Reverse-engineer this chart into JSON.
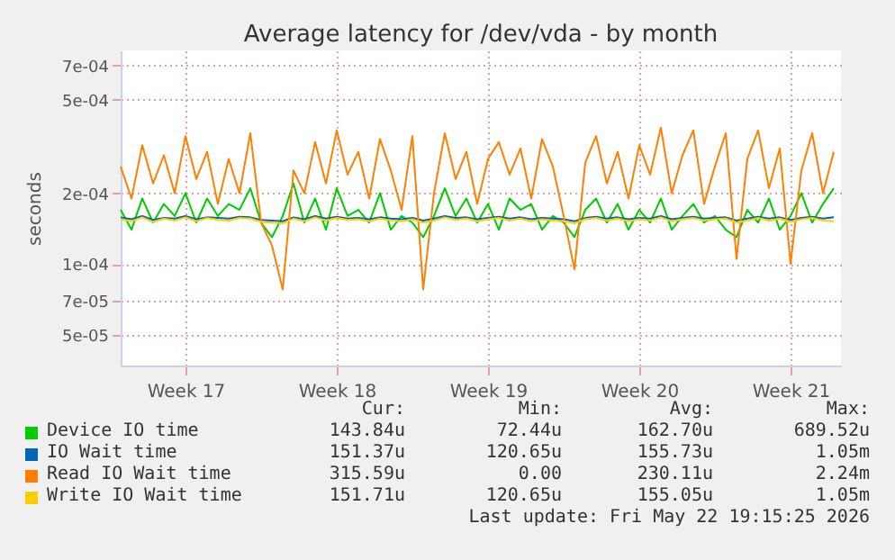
{
  "chart_data": {
    "type": "line",
    "title": "Average latency for /dev/vda - by month",
    "ylabel": "seconds",
    "log": "y",
    "grid": true,
    "legend": "bottom",
    "xlim": [
      "2026-04-20T12:00",
      "2026-05-23T20:00"
    ],
    "xticks": [
      {
        "value": "2026-04-23T12:00",
        "label": "Week 17"
      },
      {
        "value": "2026-04-30T12:00",
        "label": "Week 18"
      },
      {
        "value": "2026-05-07T12:00",
        "label": "Week 19"
      },
      {
        "value": "2026-05-14T12:00",
        "label": "Week 20"
      },
      {
        "value": "2026-05-21T12:00",
        "label": "Week 21"
      }
    ],
    "ylim": [
      3.7e-05,
      0.00081
    ],
    "yticks": [
      {
        "value": 5e-05,
        "label": "5e-05"
      },
      {
        "value": 7e-05,
        "label": "7e-05"
      },
      {
        "value": 0.0001,
        "label": "1e-04"
      },
      {
        "value": 0.0002,
        "label": "2e-04"
      },
      {
        "value": 0.0005,
        "label": "5e-04"
      },
      {
        "value": 0.0007,
        "label": "7e-04"
      }
    ],
    "x": [
      "2026-04-20T12:00",
      "2026-04-21T00:00",
      "2026-04-21T12:00",
      "2026-04-22T00:00",
      "2026-04-22T12:00",
      "2026-04-23T00:00",
      "2026-04-23T12:00",
      "2026-04-24T00:00",
      "2026-04-24T12:00",
      "2026-04-25T00:00",
      "2026-04-25T12:00",
      "2026-04-26T00:00",
      "2026-04-26T12:00",
      "2026-04-27T00:00",
      "2026-04-27T12:00",
      "2026-04-28T00:00",
      "2026-04-28T12:00",
      "2026-04-29T00:00",
      "2026-04-29T12:00",
      "2026-04-30T00:00",
      "2026-04-30T12:00",
      "2026-05-01T00:00",
      "2026-05-01T12:00",
      "2026-05-02T00:00",
      "2026-05-02T12:00",
      "2026-05-03T00:00",
      "2026-05-03T12:00",
      "2026-05-04T00:00",
      "2026-05-04T12:00",
      "2026-05-05T00:00",
      "2026-05-05T12:00",
      "2026-05-06T00:00",
      "2026-05-06T12:00",
      "2026-05-07T00:00",
      "2026-05-07T12:00",
      "2026-05-08T00:00",
      "2026-05-08T12:00",
      "2026-05-09T00:00",
      "2026-05-09T12:00",
      "2026-05-10T00:00",
      "2026-05-10T12:00",
      "2026-05-11T00:00",
      "2026-05-11T12:00",
      "2026-05-12T00:00",
      "2026-05-12T12:00",
      "2026-05-13T00:00",
      "2026-05-13T12:00",
      "2026-05-14T00:00",
      "2026-05-14T12:00",
      "2026-05-15T00:00",
      "2026-05-15T12:00",
      "2026-05-16T00:00",
      "2026-05-16T12:00",
      "2026-05-17T00:00",
      "2026-05-17T12:00",
      "2026-05-18T00:00",
      "2026-05-18T12:00",
      "2026-05-19T00:00",
      "2026-05-19T12:00",
      "2026-05-20T00:00",
      "2026-05-20T12:00",
      "2026-05-21T00:00",
      "2026-05-21T12:00",
      "2026-05-22T00:00",
      "2026-05-22T12:00",
      "2026-05-23T00:00",
      "2026-05-23T12:00"
    ],
    "series": [
      {
        "name": "Device IO time",
        "color": "#00cc00",
        "values": [
          0.00017,
          0.00014,
          0.00019,
          0.00015,
          0.00018,
          0.00016,
          0.0002,
          0.00015,
          0.00019,
          0.00016,
          0.00018,
          0.00017,
          0.00021,
          0.00015,
          0.00013,
          0.00016,
          0.00022,
          0.00015,
          0.00019,
          0.00014,
          0.00021,
          0.00016,
          0.00017,
          0.00015,
          0.0002,
          0.00014,
          0.00016,
          0.00015,
          0.00013,
          0.00016,
          0.00021,
          0.00016,
          0.00019,
          0.00015,
          0.00018,
          0.00014,
          0.00019,
          0.00017,
          0.00018,
          0.00014,
          0.00016,
          0.00015,
          0.00013,
          0.00017,
          0.00019,
          0.00015,
          0.00018,
          0.00014,
          0.00017,
          0.00015,
          0.00019,
          0.00014,
          0.00016,
          0.00018,
          0.00015,
          0.00016,
          0.00014,
          0.00013,
          0.00017,
          0.00015,
          0.00019,
          0.00014,
          0.00016,
          0.0002,
          0.00015,
          0.00018,
          0.00021
        ]
      },
      {
        "name": "IO Wait time",
        "color": "#0066b3",
        "values": [
          0.000158,
          0.000155,
          0.00016,
          0.000154,
          0.000157,
          0.000156,
          0.00016,
          0.000155,
          0.000158,
          0.000157,
          0.000156,
          0.000159,
          0.000158,
          0.000154,
          0.000153,
          0.000152,
          0.000158,
          0.000155,
          0.00016,
          0.000156,
          0.000159,
          0.000156,
          0.000157,
          0.000155,
          0.000158,
          0.000156,
          0.000155,
          0.000157,
          0.000153,
          0.000156,
          0.00016,
          0.000157,
          0.000158,
          0.000155,
          0.000157,
          0.000159,
          0.000156,
          0.000158,
          0.000155,
          0.000157,
          0.000156,
          0.000155,
          0.000152,
          0.000157,
          0.000159,
          0.000156,
          0.000158,
          0.000155,
          0.000157,
          0.000156,
          0.00016,
          0.000155,
          0.000157,
          0.000159,
          0.000156,
          0.000157,
          0.000158,
          0.000153,
          0.000156,
          0.000159,
          0.000156,
          0.000158,
          0.000154,
          0.000157,
          0.000159,
          0.000156,
          0.000158
        ]
      },
      {
        "name": "Read IO Wait time",
        "color": "#ff8000",
        "values": [
          0.00026,
          0.00019,
          0.00032,
          0.00022,
          0.00029,
          0.0002,
          0.00035,
          0.00023,
          0.0003,
          0.00018,
          0.00028,
          0.0002,
          0.00036,
          0.00015,
          0.00012,
          7.8e-05,
          0.00025,
          0.0002,
          0.00033,
          0.00022,
          0.00037,
          0.00024,
          0.0003,
          0.00019,
          0.00034,
          0.00025,
          0.00017,
          0.00035,
          7.8e-05,
          0.0002,
          0.00036,
          0.00023,
          0.0003,
          0.00018,
          0.00028,
          0.00033,
          0.00024,
          0.00031,
          0.00019,
          0.00034,
          0.00026,
          0.00016,
          9.5e-05,
          0.00027,
          0.00035,
          0.00022,
          0.0003,
          0.00019,
          0.00032,
          0.00024,
          0.00038,
          0.0002,
          0.00029,
          0.00037,
          0.00018,
          0.00026,
          0.00036,
          0.000105,
          0.00028,
          0.00037,
          0.00021,
          0.00031,
          0.0001,
          0.00025,
          0.00036,
          0.0002,
          0.0003
        ]
      },
      {
        "name": "Write IO Wait time",
        "color": "#ffcc00",
        "values": [
          0.000155,
          0.000152,
          0.000158,
          0.000151,
          0.000156,
          0.000153,
          0.000158,
          0.000152,
          0.000157,
          0.000154,
          0.000153,
          0.000157,
          0.000156,
          0.000151,
          0.00015,
          0.000149,
          0.000156,
          0.000152,
          0.000158,
          0.000153,
          0.000157,
          0.000154,
          0.000155,
          0.000152,
          0.000156,
          0.000153,
          0.000152,
          0.000155,
          0.00015,
          0.000153,
          0.000158,
          0.000154,
          0.000156,
          0.000152,
          0.000155,
          0.000157,
          0.000153,
          0.000156,
          0.000152,
          0.000155,
          0.000153,
          0.000152,
          0.000149,
          0.000155,
          0.000157,
          0.000153,
          0.000156,
          0.000152,
          0.000155,
          0.000153,
          0.000158,
          0.000152,
          0.000155,
          0.000157,
          0.000153,
          0.000155,
          0.000156,
          0.00015,
          0.000153,
          0.000157,
          0.000153,
          0.000156,
          0.000151,
          0.000155,
          0.000157,
          0.000153,
          0.000152
        ]
      }
    ],
    "annotations": [
      "Cur:",
      "Min:",
      "Avg:",
      "Max:",
      "143.84u",
      "72.44u",
      "162.70u",
      "689.52u",
      "151.37u",
      "120.65u",
      "155.73u",
      "1.05m",
      "315.59u",
      "0.00",
      "230.11u",
      "2.24m",
      "151.71u",
      "120.65u",
      "155.05u",
      "1.05m",
      "Last update: Fri May 22 19:15:25 2026"
    ]
  }
}
